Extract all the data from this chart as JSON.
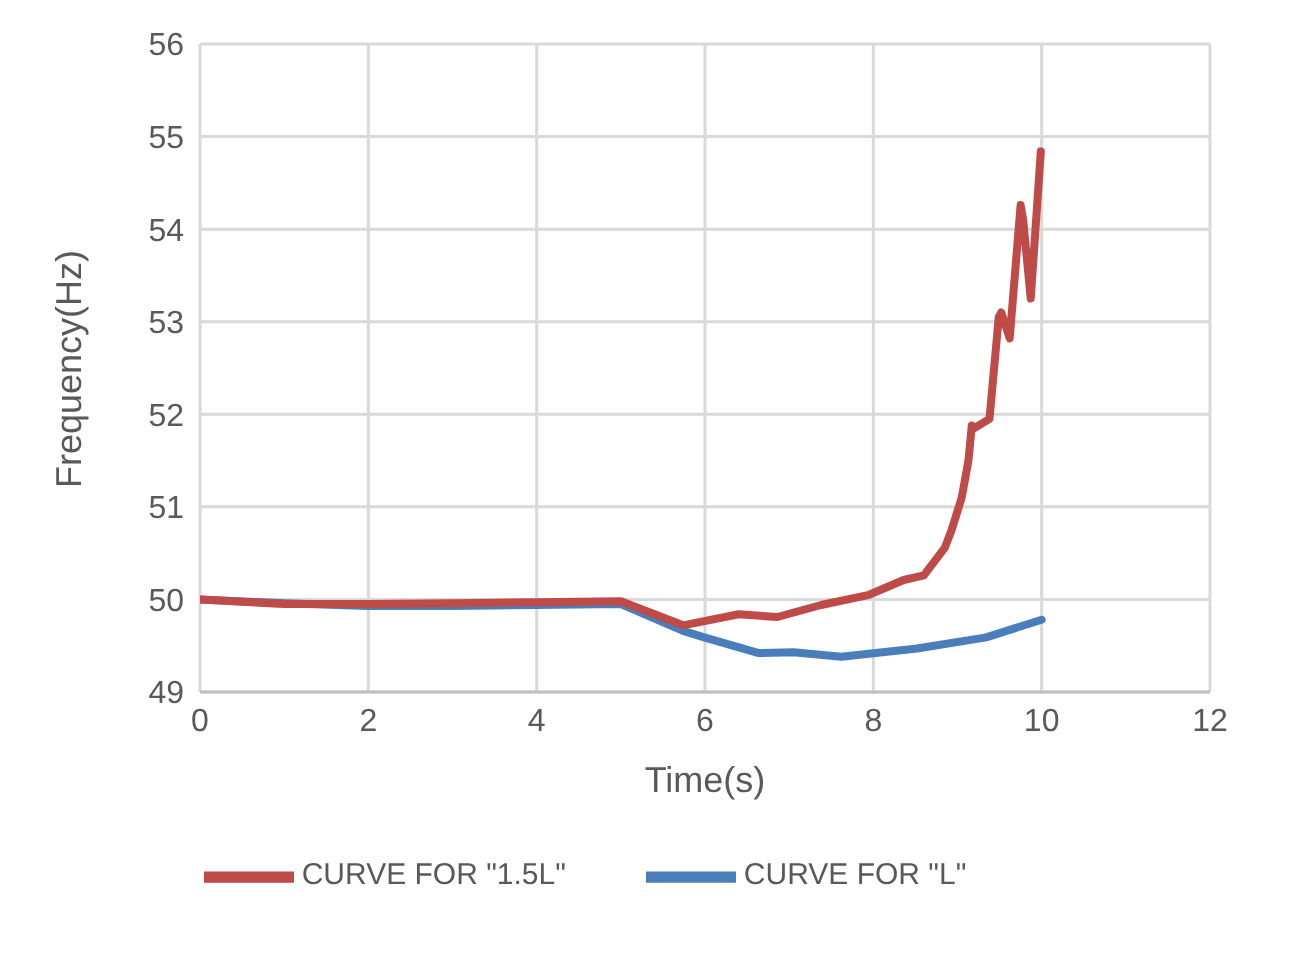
{
  "chart_data": {
    "type": "line",
    "xlabel": "Time(s)",
    "ylabel": "Frequency(Hz)",
    "xlim": [
      0,
      12
    ],
    "xticks": [
      0,
      2,
      4,
      6,
      8,
      10,
      12
    ],
    "ylim": [
      49,
      56
    ],
    "yticks": [
      49,
      50,
      51,
      52,
      53,
      54,
      55,
      56
    ],
    "grid": true,
    "legend": "bottom",
    "marker": "none",
    "line_style": "solid",
    "series": [
      {
        "name": "CURVE FOR \"L\"",
        "color": "#4a7ebb",
        "x": [
          0,
          1,
          2,
          3,
          4,
          5,
          5.74,
          5.99,
          6.64,
          7.05,
          7.62,
          8.52,
          9.34,
          10
        ],
        "values": [
          50,
          49.96,
          49.93,
          49.93,
          49.94,
          49.95,
          49.66,
          49.59,
          49.42,
          49.43,
          49.38,
          49.47,
          49.59,
          49.78
        ]
      },
      {
        "name": "CURVE FOR \"1.5L\"",
        "color": "#be4b48",
        "x": [
          0,
          1,
          2,
          3,
          4,
          5,
          5.74,
          6.4,
          6.86,
          7.38,
          7.95,
          8.36,
          8.6,
          8.85,
          8.93,
          9.05,
          9.13,
          9.17,
          9.2,
          9.38,
          9.49,
          9.52,
          9.62,
          9.75,
          9.78,
          9.87,
          9.99
        ],
        "values": [
          50,
          49.95,
          49.95,
          49.96,
          49.97,
          49.98,
          49.72,
          49.84,
          49.81,
          49.94,
          50.05,
          50.21,
          50.26,
          50.56,
          50.75,
          51.1,
          51.5,
          51.88,
          51.85,
          51.95,
          53.05,
          53.1,
          52.82,
          54.26,
          54.1,
          53.25,
          54.84
        ]
      }
    ]
  }
}
